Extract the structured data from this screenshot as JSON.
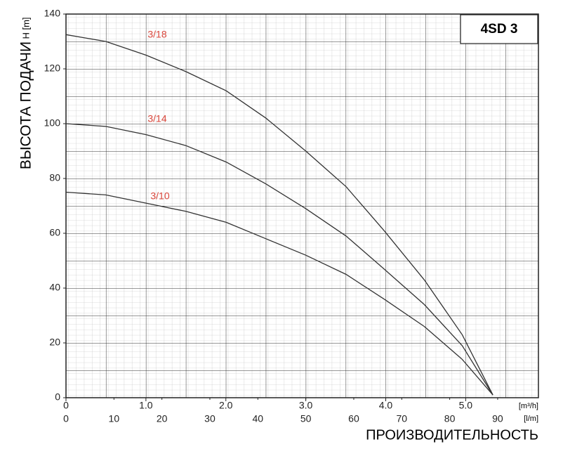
{
  "chart_data": {
    "type": "line",
    "title": "4SD 3",
    "y_label": "ВЫСОТА ПОДАЧИ",
    "y_unit": "H [m]",
    "x_label": "ПРОИЗВОДИТЕЛЬНОСТЬ",
    "x_unit": "[l/m]",
    "x2_unit": "[m³/h]",
    "x": [
      0,
      8.3,
      16.7,
      25,
      33.4,
      41.7,
      50,
      58.4,
      66.3,
      74.7,
      82.6,
      89
    ],
    "series": [
      {
        "name": "3/18",
        "color": "#333333",
        "label_color": "#d9453a",
        "values": [
          132.5,
          130,
          125,
          119,
          112,
          102,
          90,
          77,
          61,
          43,
          23,
          1
        ]
      },
      {
        "name": "3/14",
        "color": "#333333",
        "label_color": "#d9453a",
        "values": [
          100,
          99,
          96,
          92,
          86,
          78,
          69,
          59,
          47,
          34,
          19,
          1
        ]
      },
      {
        "name": "3/10",
        "color": "#333333",
        "label_color": "#d9453a",
        "values": [
          75,
          74,
          71,
          68,
          64,
          58,
          52,
          45,
          36,
          26,
          14,
          1
        ]
      }
    ],
    "xlim": [
      0,
      98.5
    ],
    "xticks": [
      0,
      10,
      20,
      30,
      40,
      50,
      60,
      70,
      80,
      90
    ],
    "x2lim": [
      0,
      5.91
    ],
    "x2ticks": [
      0,
      {
        "value": 1,
        "label": "1.0"
      },
      {
        "value": 2,
        "label": "2.0"
      },
      {
        "value": 3,
        "label": "3.0"
      },
      {
        "value": 4,
        "label": "4.0"
      },
      {
        "value": 5,
        "label": "5.0"
      }
    ],
    "ylim": [
      0,
      140
    ],
    "yticks": [
      0,
      20,
      40,
      60,
      80,
      100,
      120,
      140
    ],
    "grid": true
  }
}
